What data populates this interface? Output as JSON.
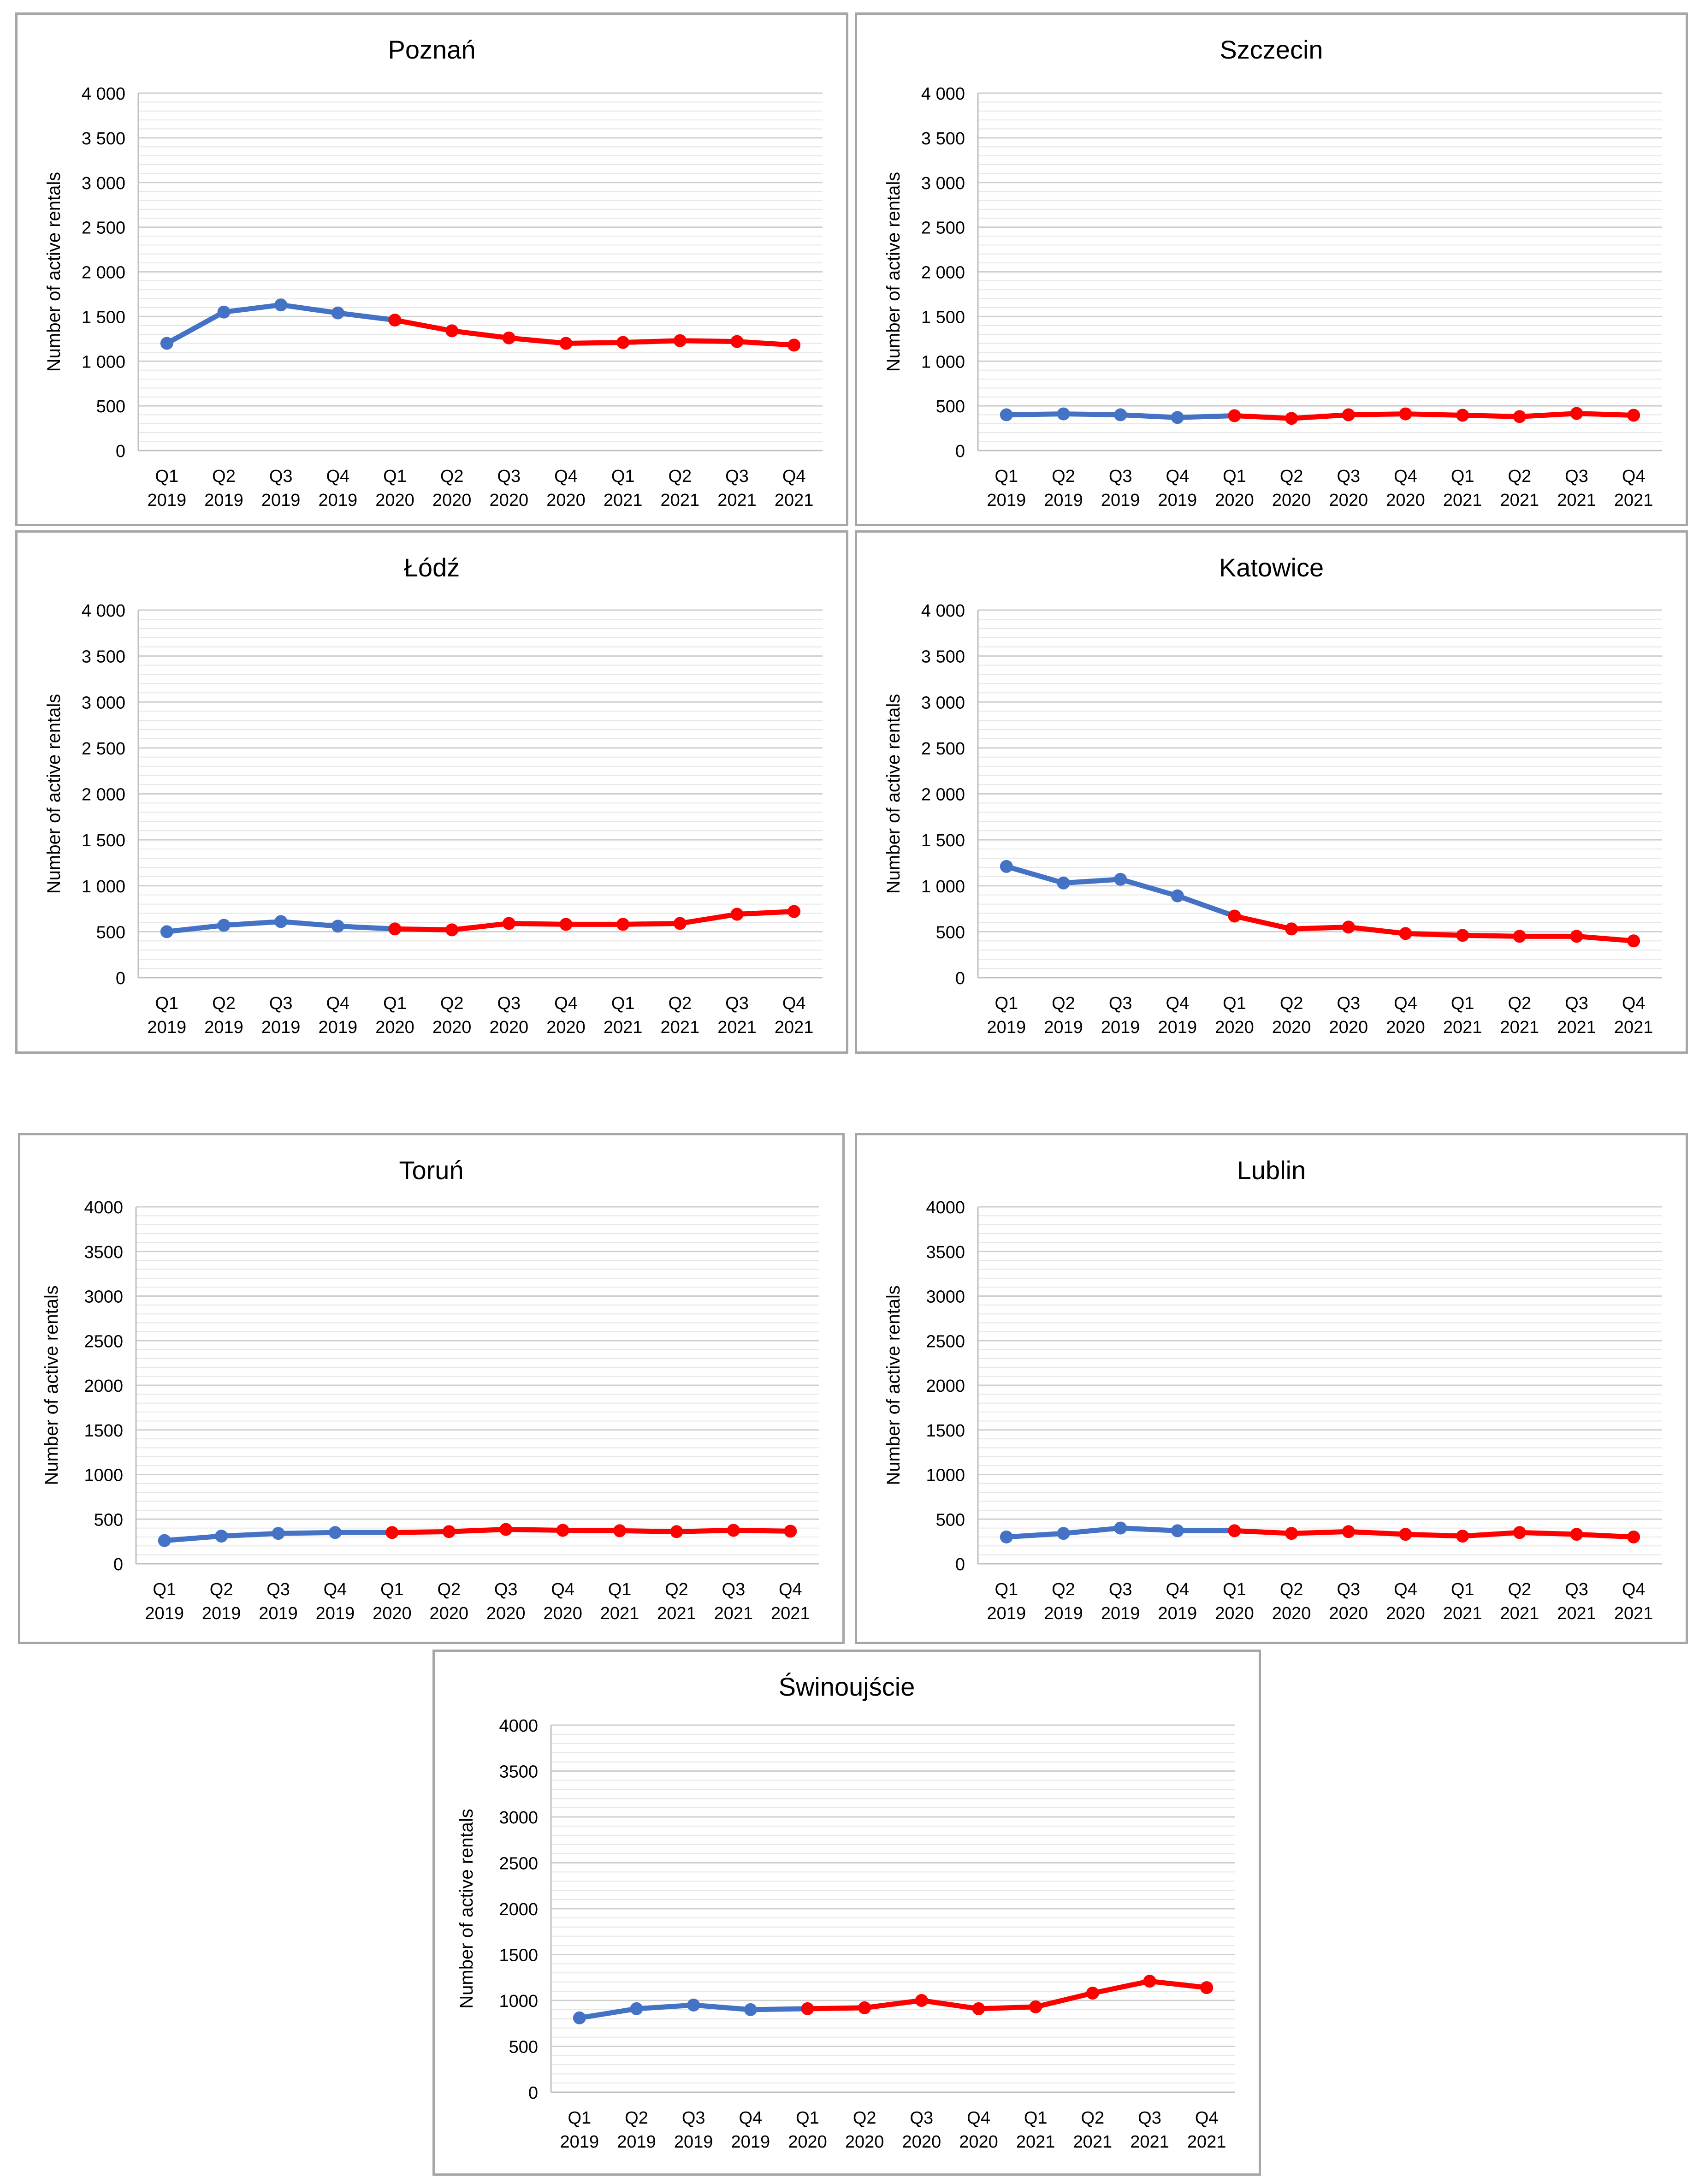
{
  "colors": {
    "pre_covid": "#4472C4",
    "covid": "#FF0000",
    "grid": "#d9d9d9",
    "axis": "#bfbfbf",
    "text": "#000000",
    "muted": "#595959"
  },
  "chart_data": [
    {
      "type": "line",
      "title": "Poznań",
      "ylabel": "Number of active rentals",
      "xlabel": "",
      "categories": [
        [
          "Q1",
          "2019"
        ],
        [
          "Q2",
          "2019"
        ],
        [
          "Q3",
          "2019"
        ],
        [
          "Q4",
          "2019"
        ],
        [
          "Q1",
          "2020"
        ],
        [
          "Q2",
          "2020"
        ],
        [
          "Q3",
          "2020"
        ],
        [
          "Q4",
          "2020"
        ],
        [
          "Q1",
          "2021"
        ],
        [
          "Q2",
          "2021"
        ],
        [
          "Q3",
          "2021"
        ],
        [
          "Q4",
          "2021"
        ]
      ],
      "yticks": [
        "0",
        "500",
        "1 000",
        "1 500",
        "2 000",
        "2 500",
        "3 000",
        "3 500",
        "4 000"
      ],
      "ylim": [
        0,
        4000
      ],
      "grid": true,
      "legend": "none",
      "values": [
        1200,
        1550,
        1630,
        1540,
        1460,
        1340,
        1260,
        1200,
        1210,
        1230,
        1220,
        1180
      ],
      "color_change_index": 4
    },
    {
      "type": "line",
      "title": "Szczecin",
      "ylabel": "Number of active rentals",
      "xlabel": "",
      "categories": [
        [
          "Q1",
          "2019"
        ],
        [
          "Q2",
          "2019"
        ],
        [
          "Q3",
          "2019"
        ],
        [
          "Q4",
          "2019"
        ],
        [
          "Q1",
          "2020"
        ],
        [
          "Q2",
          "2020"
        ],
        [
          "Q3",
          "2020"
        ],
        [
          "Q4",
          "2020"
        ],
        [
          "Q1",
          "2021"
        ],
        [
          "Q2",
          "2021"
        ],
        [
          "Q3",
          "2021"
        ],
        [
          "Q4",
          "2021"
        ]
      ],
      "yticks": [
        "0",
        "500",
        "1 000",
        "1 500",
        "2 000",
        "2 500",
        "3 000",
        "3 500",
        "4 000"
      ],
      "ylim": [
        0,
        4000
      ],
      "grid": true,
      "legend": "none",
      "values": [
        400,
        410,
        400,
        370,
        390,
        360,
        400,
        410,
        395,
        380,
        415,
        395
      ],
      "color_change_index": 4
    },
    {
      "type": "line",
      "title": "Łódź",
      "ylabel": "Number of active rentals",
      "xlabel": "",
      "categories": [
        [
          "Q1",
          "2019"
        ],
        [
          "Q2",
          "2019"
        ],
        [
          "Q3",
          "2019"
        ],
        [
          "Q4",
          "2019"
        ],
        [
          "Q1",
          "2020"
        ],
        [
          "Q2",
          "2020"
        ],
        [
          "Q3",
          "2020"
        ],
        [
          "Q4",
          "2020"
        ],
        [
          "Q1",
          "2021"
        ],
        [
          "Q2",
          "2021"
        ],
        [
          "Q3",
          "2021"
        ],
        [
          "Q4",
          "2021"
        ]
      ],
      "yticks": [
        "0",
        "500",
        "1 000",
        "1 500",
        "2 000",
        "2 500",
        "3 000",
        "3 500",
        "4 000"
      ],
      "ylim": [
        0,
        4000
      ],
      "grid": true,
      "legend": "none",
      "values": [
        500,
        570,
        610,
        560,
        530,
        520,
        590,
        580,
        580,
        590,
        690,
        720
      ],
      "color_change_index": 4
    },
    {
      "type": "line",
      "title": "Katowice",
      "ylabel": "Number of active rentals",
      "xlabel": "",
      "categories": [
        [
          "Q1",
          "2019"
        ],
        [
          "Q2",
          "2019"
        ],
        [
          "Q3",
          "2019"
        ],
        [
          "Q4",
          "2019"
        ],
        [
          "Q1",
          "2020"
        ],
        [
          "Q2",
          "2020"
        ],
        [
          "Q3",
          "2020"
        ],
        [
          "Q4",
          "2020"
        ],
        [
          "Q1",
          "2021"
        ],
        [
          "Q2",
          "2021"
        ],
        [
          "Q3",
          "2021"
        ],
        [
          "Q4",
          "2021"
        ]
      ],
      "yticks": [
        "0",
        "500",
        "1 000",
        "1 500",
        "2 000",
        "2 500",
        "3 000",
        "3 500",
        "4 000"
      ],
      "ylim": [
        0,
        4000
      ],
      "grid": true,
      "legend": "none",
      "values": [
        1210,
        1030,
        1070,
        890,
        670,
        530,
        550,
        480,
        460,
        450,
        450,
        400
      ],
      "color_change_index": 4
    },
    {
      "type": "line",
      "title": "Toruń",
      "ylabel": "Number of active rentals",
      "xlabel": "",
      "categories": [
        [
          "Q1",
          "2019"
        ],
        [
          "Q2",
          "2019"
        ],
        [
          "Q3",
          "2019"
        ],
        [
          "Q4",
          "2019"
        ],
        [
          "Q1",
          "2020"
        ],
        [
          "Q2",
          "2020"
        ],
        [
          "Q3",
          "2020"
        ],
        [
          "Q4",
          "2020"
        ],
        [
          "Q1",
          "2021"
        ],
        [
          "Q2",
          "2021"
        ],
        [
          "Q3",
          "2021"
        ],
        [
          "Q4",
          "2021"
        ]
      ],
      "yticks": [
        "0",
        "500",
        "1000",
        "1500",
        "2000",
        "2500",
        "3000",
        "3500",
        "4000"
      ],
      "ylim": [
        0,
        4000
      ],
      "grid": true,
      "legend": "none",
      "values": [
        260,
        310,
        340,
        350,
        350,
        360,
        385,
        375,
        370,
        360,
        375,
        365
      ],
      "color_change_index": 4
    },
    {
      "type": "line",
      "title": "Lublin",
      "ylabel": "Number of active rentals",
      "xlabel": "",
      "categories": [
        [
          "Q1",
          "2019"
        ],
        [
          "Q2",
          "2019"
        ],
        [
          "Q3",
          "2019"
        ],
        [
          "Q4",
          "2019"
        ],
        [
          "Q1",
          "2020"
        ],
        [
          "Q2",
          "2020"
        ],
        [
          "Q3",
          "2020"
        ],
        [
          "Q4",
          "2020"
        ],
        [
          "Q1",
          "2021"
        ],
        [
          "Q2",
          "2021"
        ],
        [
          "Q3",
          "2021"
        ],
        [
          "Q4",
          "2021"
        ]
      ],
      "yticks": [
        "0",
        "500",
        "1000",
        "1500",
        "2000",
        "2500",
        "3000",
        "3500",
        "4000"
      ],
      "ylim": [
        0,
        4000
      ],
      "grid": true,
      "legend": "none",
      "values": [
        300,
        340,
        400,
        370,
        370,
        340,
        360,
        330,
        310,
        350,
        330,
        300
      ],
      "color_change_index": 4
    },
    {
      "type": "line",
      "title": "Świnoujście",
      "ylabel": "Number of active rentals",
      "xlabel": "",
      "categories": [
        [
          "Q1",
          "2019"
        ],
        [
          "Q2",
          "2019"
        ],
        [
          "Q3",
          "2019"
        ],
        [
          "Q4",
          "2019"
        ],
        [
          "Q1",
          "2020"
        ],
        [
          "Q2",
          "2020"
        ],
        [
          "Q3",
          "2020"
        ],
        [
          "Q4",
          "2020"
        ],
        [
          "Q1",
          "2021"
        ],
        [
          "Q2",
          "2021"
        ],
        [
          "Q3",
          "2021"
        ],
        [
          "Q4",
          "2021"
        ]
      ],
      "yticks": [
        "0",
        "500",
        "1000",
        "1500",
        "2000",
        "2500",
        "3000",
        "3500",
        "4000"
      ],
      "ylim": [
        0,
        4000
      ],
      "grid": true,
      "legend": "none",
      "values": [
        810,
        910,
        950,
        900,
        910,
        920,
        1000,
        910,
        930,
        1080,
        1210,
        1140
      ],
      "color_change_index": 4
    }
  ]
}
